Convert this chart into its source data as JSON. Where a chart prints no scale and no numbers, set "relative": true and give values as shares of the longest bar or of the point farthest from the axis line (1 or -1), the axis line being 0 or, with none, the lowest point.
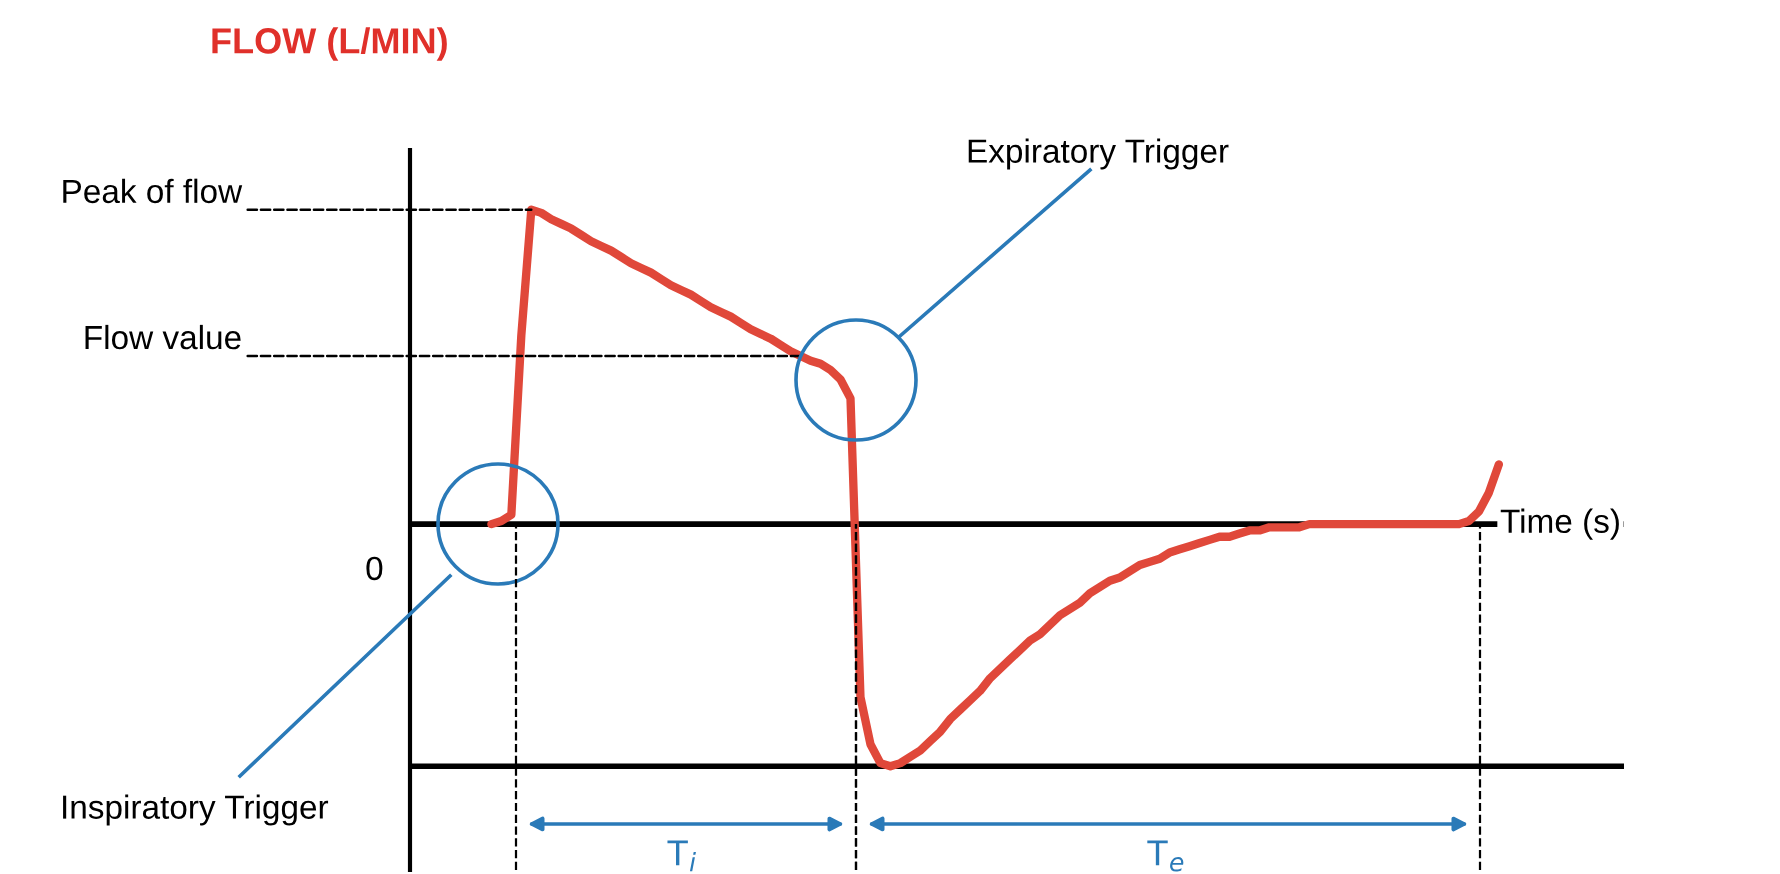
{
  "chart_data": {
    "type": "line",
    "title": "FLOW (L/MIN)",
    "xlabel": "Time (s)",
    "relative": true,
    "categories": [
      null,
      null,
      null,
      null,
      null,
      null,
      null,
      null,
      null,
      null,
      null,
      null,
      null,
      null,
      null,
      null,
      null,
      null,
      null,
      null,
      null,
      null,
      null,
      null,
      null,
      null,
      null,
      null,
      null,
      null,
      null,
      null,
      null,
      null,
      null,
      null,
      null,
      null,
      null,
      null,
      null,
      null,
      null,
      null,
      null,
      null,
      null,
      null,
      null,
      null,
      null,
      null,
      null,
      null,
      null,
      null,
      null,
      null,
      null,
      null,
      null,
      null,
      null,
      null,
      null,
      null,
      null,
      null,
      null,
      null,
      null,
      null,
      null,
      null,
      null,
      null,
      null,
      null,
      null,
      null,
      null,
      null,
      null,
      null,
      null,
      null,
      null,
      null,
      null,
      null,
      null,
      null,
      null,
      null,
      null,
      null,
      null,
      null,
      null,
      null,
      null,
      null
    ],
    "series": [
      {
        "color": "#e0483a",
        "values": [
          0,
          0.01,
          0.03,
          0.6,
          1.0,
          0.99,
          0.97,
          0.955,
          0.94,
          0.92,
          0.9,
          0.885,
          0.87,
          0.85,
          0.83,
          0.815,
          0.8,
          0.78,
          0.76,
          0.745,
          0.73,
          0.71,
          0.69,
          0.675,
          0.66,
          0.64,
          0.62,
          0.605,
          0.59,
          0.57,
          0.55,
          0.535,
          0.52,
          0.51,
          0.49,
          0.46,
          0.4,
          -0.55,
          -0.7,
          -0.76,
          -0.77,
          -0.76,
          -0.74,
          -0.72,
          -0.69,
          -0.66,
          -0.62,
          -0.59,
          -0.56,
          -0.53,
          -0.49,
          -0.46,
          -0.43,
          -0.4,
          -0.37,
          -0.35,
          -0.32,
          -0.29,
          -0.27,
          -0.25,
          -0.22,
          -0.2,
          -0.18,
          -0.17,
          -0.15,
          -0.13,
          -0.12,
          -0.11,
          -0.09,
          -0.08,
          -0.07,
          -0.06,
          -0.05,
          -0.04,
          -0.04,
          -0.03,
          -0.02,
          -0.02,
          -0.01,
          -0.01,
          -0.01,
          -0.01,
          0,
          0,
          0,
          0,
          0,
          0,
          0,
          0,
          0,
          0,
          0,
          0,
          0,
          0,
          0,
          0,
          0.01,
          0.04,
          0.1,
          0.19
        ]
      }
    ],
    "ref_lines": [
      {
        "axis": "y",
        "value": 0,
        "label": "0",
        "color": "#000000",
        "line_style": "solid"
      },
      {
        "axis": "y",
        "value": -0.77,
        "color": "#000000",
        "line_style": "solid"
      }
    ],
    "annotations": [
      "Inspiratory Trigger",
      "Expiratory Trigger",
      "T$_{i}$",
      "T$_{e}$",
      "Peak of flow",
      "Flow value"
    ],
    "marker": "none",
    "line_style": "solid"
  }
}
